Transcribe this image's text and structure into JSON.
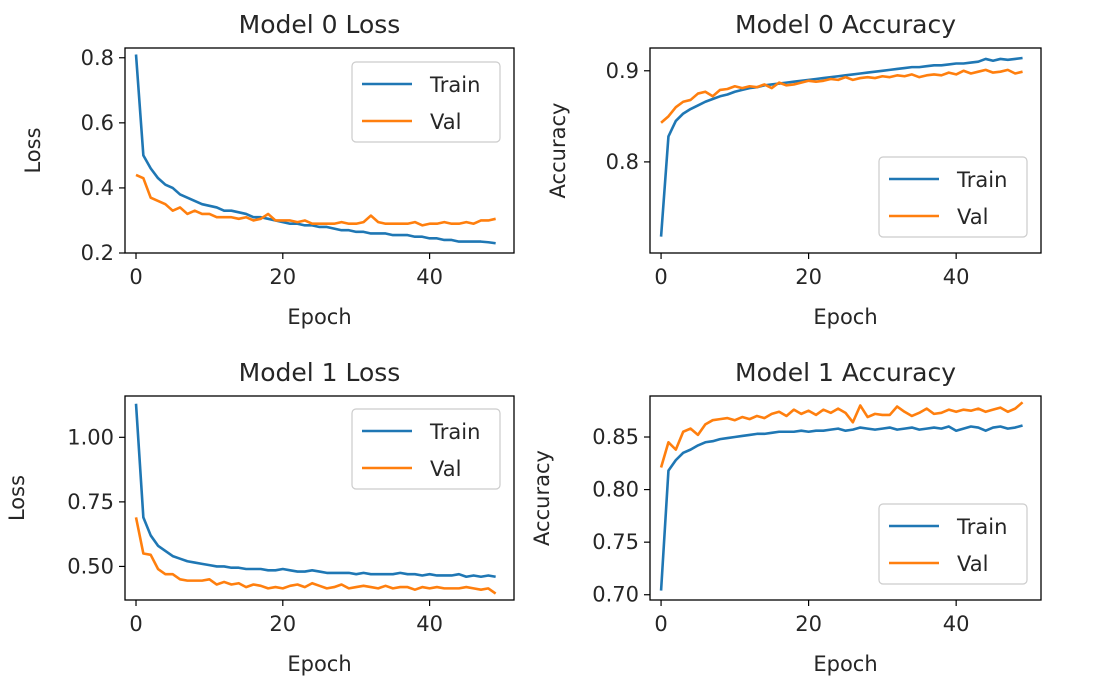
{
  "colors": {
    "train": "#1f77b4",
    "val": "#ff7f0e",
    "axes": "#000000",
    "background": "#ffffff",
    "legend_border": "#cccccc"
  },
  "chart_data": [
    {
      "type": "line",
      "title": "Model 0 Loss",
      "xlabel": "Epoch",
      "ylabel": "Loss",
      "xlim": [
        -1.5,
        51.5
      ],
      "ylim": [
        0.2,
        0.83
      ],
      "xticks": [
        0,
        20,
        40
      ],
      "xtick_labels": [
        "0",
        "20",
        "40"
      ],
      "yticks": [
        0.2,
        0.4,
        0.6,
        0.8
      ],
      "ytick_labels": [
        "0.2",
        "0.4",
        "0.6",
        "0.8"
      ],
      "grid": false,
      "legend": "top-right",
      "x": [
        0,
        1,
        2,
        3,
        4,
        5,
        6,
        7,
        8,
        9,
        10,
        11,
        12,
        13,
        14,
        15,
        16,
        17,
        18,
        19,
        20,
        21,
        22,
        23,
        24,
        25,
        26,
        27,
        28,
        29,
        30,
        31,
        32,
        33,
        34,
        35,
        36,
        37,
        38,
        39,
        40,
        41,
        42,
        43,
        44,
        45,
        46,
        47,
        48,
        49
      ],
      "series": [
        {
          "name": "Train",
          "color": "#1f77b4",
          "values": [
            0.81,
            0.5,
            0.46,
            0.43,
            0.41,
            0.4,
            0.38,
            0.37,
            0.36,
            0.35,
            0.345,
            0.34,
            0.33,
            0.33,
            0.325,
            0.32,
            0.31,
            0.31,
            0.305,
            0.3,
            0.295,
            0.29,
            0.29,
            0.285,
            0.285,
            0.28,
            0.28,
            0.275,
            0.27,
            0.27,
            0.265,
            0.265,
            0.26,
            0.26,
            0.26,
            0.255,
            0.255,
            0.255,
            0.25,
            0.25,
            0.245,
            0.245,
            0.24,
            0.24,
            0.235,
            0.235,
            0.235,
            0.235,
            0.233,
            0.23
          ]
        },
        {
          "name": "Val",
          "color": "#ff7f0e",
          "values": [
            0.44,
            0.43,
            0.37,
            0.36,
            0.35,
            0.33,
            0.34,
            0.32,
            0.33,
            0.32,
            0.32,
            0.31,
            0.31,
            0.31,
            0.305,
            0.31,
            0.3,
            0.305,
            0.32,
            0.3,
            0.3,
            0.3,
            0.295,
            0.3,
            0.29,
            0.29,
            0.29,
            0.29,
            0.295,
            0.29,
            0.29,
            0.295,
            0.315,
            0.295,
            0.29,
            0.29,
            0.29,
            0.29,
            0.295,
            0.285,
            0.29,
            0.29,
            0.295,
            0.29,
            0.29,
            0.295,
            0.29,
            0.3,
            0.3,
            0.305
          ]
        }
      ]
    },
    {
      "type": "line",
      "title": "Model 0 Accuracy",
      "xlabel": "Epoch",
      "ylabel": "Accuracy",
      "xlim": [
        -1.5,
        51.5
      ],
      "ylim": [
        0.7,
        0.925
      ],
      "xticks": [
        0,
        20,
        40
      ],
      "xtick_labels": [
        "0",
        "20",
        "40"
      ],
      "yticks": [
        0.8,
        0.9
      ],
      "ytick_labels": [
        "0.8",
        "0.9"
      ],
      "grid": false,
      "legend": "bottom-right",
      "x": [
        0,
        1,
        2,
        3,
        4,
        5,
        6,
        7,
        8,
        9,
        10,
        11,
        12,
        13,
        14,
        15,
        16,
        17,
        18,
        19,
        20,
        21,
        22,
        23,
        24,
        25,
        26,
        27,
        28,
        29,
        30,
        31,
        32,
        33,
        34,
        35,
        36,
        37,
        38,
        39,
        40,
        41,
        42,
        43,
        44,
        45,
        46,
        47,
        48,
        49
      ],
      "series": [
        {
          "name": "Train",
          "color": "#1f77b4",
          "values": [
            0.718,
            0.828,
            0.845,
            0.853,
            0.858,
            0.862,
            0.866,
            0.869,
            0.872,
            0.874,
            0.877,
            0.879,
            0.881,
            0.882,
            0.884,
            0.885,
            0.886,
            0.887,
            0.888,
            0.889,
            0.89,
            0.891,
            0.892,
            0.893,
            0.894,
            0.895,
            0.896,
            0.897,
            0.898,
            0.899,
            0.9,
            0.901,
            0.902,
            0.903,
            0.904,
            0.904,
            0.905,
            0.906,
            0.906,
            0.907,
            0.908,
            0.908,
            0.909,
            0.91,
            0.913,
            0.911,
            0.913,
            0.912,
            0.913,
            0.914
          ]
        },
        {
          "name": "Val",
          "color": "#ff7f0e",
          "values": [
            0.843,
            0.85,
            0.86,
            0.866,
            0.868,
            0.875,
            0.877,
            0.872,
            0.879,
            0.88,
            0.883,
            0.881,
            0.883,
            0.882,
            0.885,
            0.881,
            0.887,
            0.884,
            0.885,
            0.887,
            0.889,
            0.888,
            0.889,
            0.891,
            0.89,
            0.893,
            0.89,
            0.892,
            0.893,
            0.892,
            0.894,
            0.893,
            0.895,
            0.894,
            0.896,
            0.893,
            0.895,
            0.896,
            0.895,
            0.898,
            0.896,
            0.9,
            0.897,
            0.899,
            0.901,
            0.898,
            0.899,
            0.901,
            0.897,
            0.899
          ]
        }
      ]
    },
    {
      "type": "line",
      "title": "Model 1 Loss",
      "xlabel": "Epoch",
      "ylabel": "Loss",
      "xlim": [
        -1.5,
        51.5
      ],
      "ylim": [
        0.37,
        1.16
      ],
      "xticks": [
        0,
        20,
        40
      ],
      "xtick_labels": [
        "0",
        "20",
        "40"
      ],
      "yticks": [
        0.5,
        0.75,
        1.0
      ],
      "ytick_labels": [
        "0.50",
        "0.75",
        "1.00"
      ],
      "grid": false,
      "legend": "top-right",
      "x": [
        0,
        1,
        2,
        3,
        4,
        5,
        6,
        7,
        8,
        9,
        10,
        11,
        12,
        13,
        14,
        15,
        16,
        17,
        18,
        19,
        20,
        21,
        22,
        23,
        24,
        25,
        26,
        27,
        28,
        29,
        30,
        31,
        32,
        33,
        34,
        35,
        36,
        37,
        38,
        39,
        40,
        41,
        42,
        43,
        44,
        45,
        46,
        47,
        48,
        49
      ],
      "series": [
        {
          "name": "Train",
          "color": "#1f77b4",
          "values": [
            1.13,
            0.69,
            0.62,
            0.58,
            0.56,
            0.54,
            0.53,
            0.52,
            0.515,
            0.51,
            0.505,
            0.5,
            0.5,
            0.495,
            0.495,
            0.49,
            0.49,
            0.49,
            0.485,
            0.485,
            0.49,
            0.485,
            0.48,
            0.48,
            0.485,
            0.48,
            0.475,
            0.475,
            0.475,
            0.475,
            0.47,
            0.475,
            0.47,
            0.47,
            0.47,
            0.47,
            0.475,
            0.47,
            0.47,
            0.465,
            0.47,
            0.465,
            0.465,
            0.465,
            0.47,
            0.46,
            0.465,
            0.46,
            0.465,
            0.46
          ]
        },
        {
          "name": "Val",
          "color": "#ff7f0e",
          "values": [
            0.69,
            0.55,
            0.545,
            0.49,
            0.47,
            0.47,
            0.45,
            0.445,
            0.445,
            0.445,
            0.45,
            0.43,
            0.44,
            0.43,
            0.435,
            0.42,
            0.43,
            0.425,
            0.415,
            0.42,
            0.415,
            0.425,
            0.43,
            0.42,
            0.435,
            0.425,
            0.415,
            0.42,
            0.43,
            0.415,
            0.42,
            0.425,
            0.42,
            0.415,
            0.425,
            0.415,
            0.42,
            0.42,
            0.41,
            0.42,
            0.415,
            0.42,
            0.415,
            0.415,
            0.415,
            0.42,
            0.415,
            0.41,
            0.415,
            0.395
          ]
        }
      ]
    },
    {
      "type": "line",
      "title": "Model 1 Accuracy",
      "xlabel": "Epoch",
      "ylabel": "Accuracy",
      "xlim": [
        -1.5,
        51.5
      ],
      "ylim": [
        0.695,
        0.889
      ],
      "xticks": [
        0,
        20,
        40
      ],
      "xtick_labels": [
        "0",
        "20",
        "40"
      ],
      "yticks": [
        0.7,
        0.75,
        0.8,
        0.85
      ],
      "ytick_labels": [
        "0.70",
        "0.75",
        "0.80",
        "0.85"
      ],
      "grid": false,
      "legend": "bottom-right",
      "x": [
        0,
        1,
        2,
        3,
        4,
        5,
        6,
        7,
        8,
        9,
        10,
        11,
        12,
        13,
        14,
        15,
        16,
        17,
        18,
        19,
        20,
        21,
        22,
        23,
        24,
        25,
        26,
        27,
        28,
        29,
        30,
        31,
        32,
        33,
        34,
        35,
        36,
        37,
        38,
        39,
        40,
        41,
        42,
        43,
        44,
        45,
        46,
        47,
        48,
        49
      ],
      "series": [
        {
          "name": "Train",
          "color": "#1f77b4",
          "values": [
            0.704,
            0.818,
            0.828,
            0.835,
            0.838,
            0.842,
            0.845,
            0.846,
            0.848,
            0.849,
            0.85,
            0.851,
            0.852,
            0.853,
            0.853,
            0.854,
            0.855,
            0.855,
            0.855,
            0.856,
            0.855,
            0.856,
            0.856,
            0.857,
            0.858,
            0.856,
            0.857,
            0.859,
            0.858,
            0.857,
            0.858,
            0.859,
            0.857,
            0.858,
            0.859,
            0.857,
            0.858,
            0.859,
            0.858,
            0.86,
            0.856,
            0.858,
            0.86,
            0.859,
            0.856,
            0.859,
            0.86,
            0.858,
            0.859,
            0.861
          ]
        },
        {
          "name": "Val",
          "color": "#ff7f0e",
          "values": [
            0.821,
            0.845,
            0.838,
            0.855,
            0.858,
            0.852,
            0.862,
            0.866,
            0.867,
            0.868,
            0.866,
            0.869,
            0.867,
            0.87,
            0.868,
            0.872,
            0.874,
            0.87,
            0.876,
            0.872,
            0.875,
            0.871,
            0.876,
            0.873,
            0.877,
            0.873,
            0.864,
            0.88,
            0.869,
            0.872,
            0.871,
            0.871,
            0.879,
            0.874,
            0.87,
            0.873,
            0.877,
            0.872,
            0.873,
            0.876,
            0.874,
            0.876,
            0.875,
            0.877,
            0.874,
            0.876,
            0.878,
            0.874,
            0.877,
            0.883
          ]
        }
      ]
    }
  ]
}
